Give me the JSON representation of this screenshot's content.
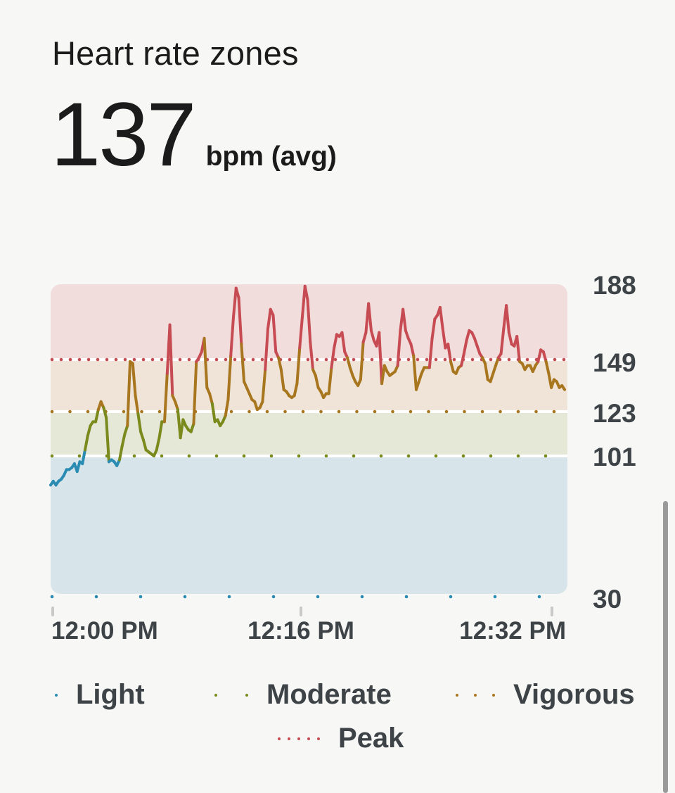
{
  "header": {
    "title": "Heart rate zones",
    "value": "137",
    "unit": "bpm (avg)"
  },
  "chart_data": {
    "type": "line",
    "y_axis": {
      "ticks": [
        188,
        149,
        123,
        101,
        30
      ],
      "ylim": [
        30,
        188
      ]
    },
    "x_axis": {
      "ticks": [
        "12:00 PM",
        "12:16 PM",
        "12:32 PM"
      ]
    },
    "zones": [
      {
        "name": "Light",
        "from": 30,
        "to": 101,
        "color": "#2a8cb2",
        "bg": "#d7e5ea"
      },
      {
        "name": "Moderate",
        "from": 101,
        "to": 123,
        "color": "#7a8a1c",
        "bg": "#e6e8d7"
      },
      {
        "name": "Vigorous",
        "from": 123,
        "to": 149,
        "color": "#a8761f",
        "bg": "#efe4d7"
      },
      {
        "name": "Peak",
        "from": 149,
        "to": 188,
        "color": "#c64b52",
        "bg": "#f2dddd"
      }
    ],
    "legend": [
      "Light",
      "Moderate",
      "Vigorous",
      "Peak"
    ],
    "series": [
      {
        "values": [
          86,
          88,
          86,
          88,
          89,
          91,
          94,
          94,
          95,
          97,
          93,
          98,
          97,
          104,
          111,
          116,
          118,
          118,
          124,
          128,
          125,
          120,
          98,
          99,
          98,
          96,
          99,
          106,
          112,
          116,
          148,
          147,
          131,
          122,
          113,
          109,
          104,
          103,
          102,
          101,
          104,
          110,
          118,
          118,
          142,
          167,
          131,
          128,
          124,
          110,
          119,
          116,
          114,
          113,
          117,
          148,
          150,
          153,
          160,
          135,
          132,
          127,
          118,
          119,
          116,
          118,
          121,
          129,
          151,
          171,
          186,
          181,
          157,
          138,
          135,
          132,
          129,
          128,
          124,
          125,
          128,
          144,
          165,
          175,
          172,
          153,
          150,
          144,
          134,
          133,
          131,
          130,
          131,
          137,
          155,
          171,
          187,
          180,
          158,
          144,
          141,
          135,
          133,
          130,
          132,
          132,
          145,
          155,
          162,
          161,
          163,
          153,
          150,
          145,
          141,
          138,
          136,
          139,
          158,
          163,
          178,
          164,
          159,
          156,
          163,
          137,
          146,
          143,
          141,
          142,
          143,
          146,
          164,
          175,
          164,
          160,
          157,
          151,
          134,
          138,
          142,
          145,
          145,
          145,
          160,
          170,
          172,
          176,
          165,
          155,
          157,
          148,
          143,
          142,
          145,
          146,
          152,
          159,
          164,
          163,
          160,
          156,
          152,
          150,
          147,
          139,
          138,
          142,
          146,
          150,
          152,
          165,
          177,
          163,
          157,
          156,
          161,
          148,
          147,
          144,
          146,
          146,
          143,
          146,
          148,
          154,
          153,
          148,
          142,
          135,
          139,
          138,
          135,
          136,
          134
        ]
      }
    ]
  },
  "colors": {
    "text": "#1b1b1b",
    "axis_text": "#3d4347",
    "tick_mark": "#c9c9c9",
    "scrollbar": "#9a9a9a"
  }
}
